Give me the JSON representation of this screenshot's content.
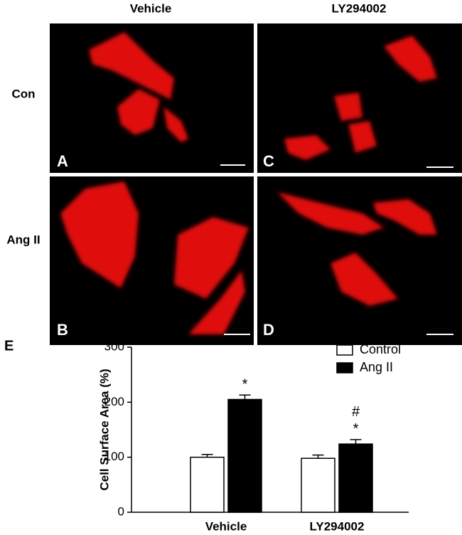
{
  "figure": {
    "columns": [
      "Vehicle",
      "LY294002"
    ],
    "rows": [
      "Con",
      "Ang II"
    ],
    "panels": [
      "A",
      "C",
      "B",
      "D"
    ],
    "chart_panel": "E"
  },
  "chart_data": {
    "type": "bar",
    "ylabel": "Cell Surface Area (%)",
    "categories": [
      "Vehicle",
      "LY294002"
    ],
    "series": [
      {
        "name": "Control",
        "color": "#ffffff",
        "values": [
          100,
          98
        ],
        "errors": [
          5,
          6
        ]
      },
      {
        "name": "Ang II",
        "color": "#000000",
        "values": [
          205,
          124
        ],
        "errors": [
          8,
          8
        ]
      }
    ],
    "annotations": [
      "*",
      "#",
      "*"
    ],
    "ylim": [
      0,
      300
    ],
    "yticks": [
      0,
      100,
      200,
      300
    ],
    "grid": false
  }
}
